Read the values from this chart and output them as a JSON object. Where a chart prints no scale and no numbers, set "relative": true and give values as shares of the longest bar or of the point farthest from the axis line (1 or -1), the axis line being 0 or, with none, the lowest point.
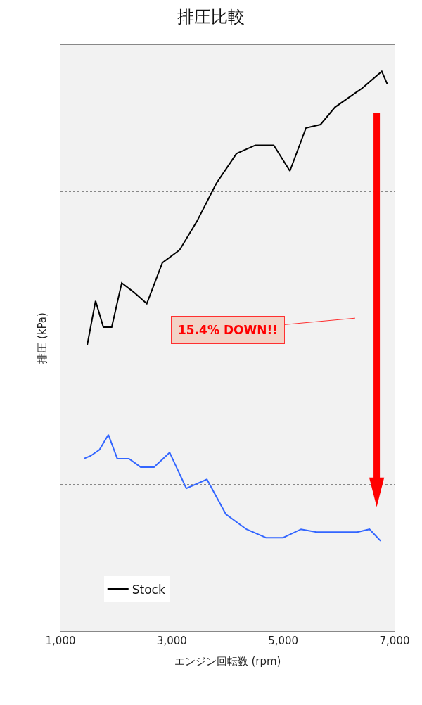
{
  "chart_data": {
    "type": "line",
    "title": "排圧比較",
    "xlabel": "エンジン回転数 (rpm)",
    "ylabel": "排圧 (kPa)",
    "relative": true,
    "xlim": [
      1000,
      7000
    ],
    "xticks": [
      {
        "value": 1000,
        "label": "1,000"
      },
      {
        "value": 3000,
        "label": "3,000"
      },
      {
        "value": 5000,
        "label": "5,000"
      },
      {
        "value": 7000,
        "label": "7,000"
      }
    ],
    "grid": true,
    "legend": "bottom left",
    "line_style": "solid",
    "marker": "none",
    "annotations": [
      "15.4% DOWN!!"
    ],
    "series": [
      {
        "name": "Stock",
        "color": "#000000",
        "x": [
          1480,
          1630,
          1770,
          1920,
          2100,
          2310,
          2550,
          2830,
          3140,
          3450,
          3800,
          4160,
          4500,
          4830,
          5120,
          5410,
          5670,
          5930,
          6420,
          6770,
          6870
        ],
        "values": [
          0.511,
          0.59,
          0.543,
          0.543,
          0.622,
          0.606,
          0.585,
          0.658,
          0.681,
          0.732,
          0.8,
          0.853,
          0.868,
          0.868,
          0.822,
          0.899,
          0.905,
          0.936,
          0.97,
          1,
          0.977
        ]
      },
      {
        "color": "#3366ff",
        "x": [
          1420,
          1540,
          1700,
          1860,
          2020,
          2230,
          2440,
          2680,
          2960,
          3260,
          3630,
          3970,
          4340,
          4690,
          5000,
          5320,
          5600,
          5950,
          6330,
          6550,
          6750
        ],
        "values": [
          0.308,
          0.313,
          0.324,
          0.351,
          0.308,
          0.308,
          0.293,
          0.293,
          0.319,
          0.255,
          0.271,
          0.209,
          0.182,
          0.167,
          0.167,
          0.182,
          0.177,
          0.177,
          0.177,
          0.182,
          0.161
        ]
      }
    ]
  }
}
